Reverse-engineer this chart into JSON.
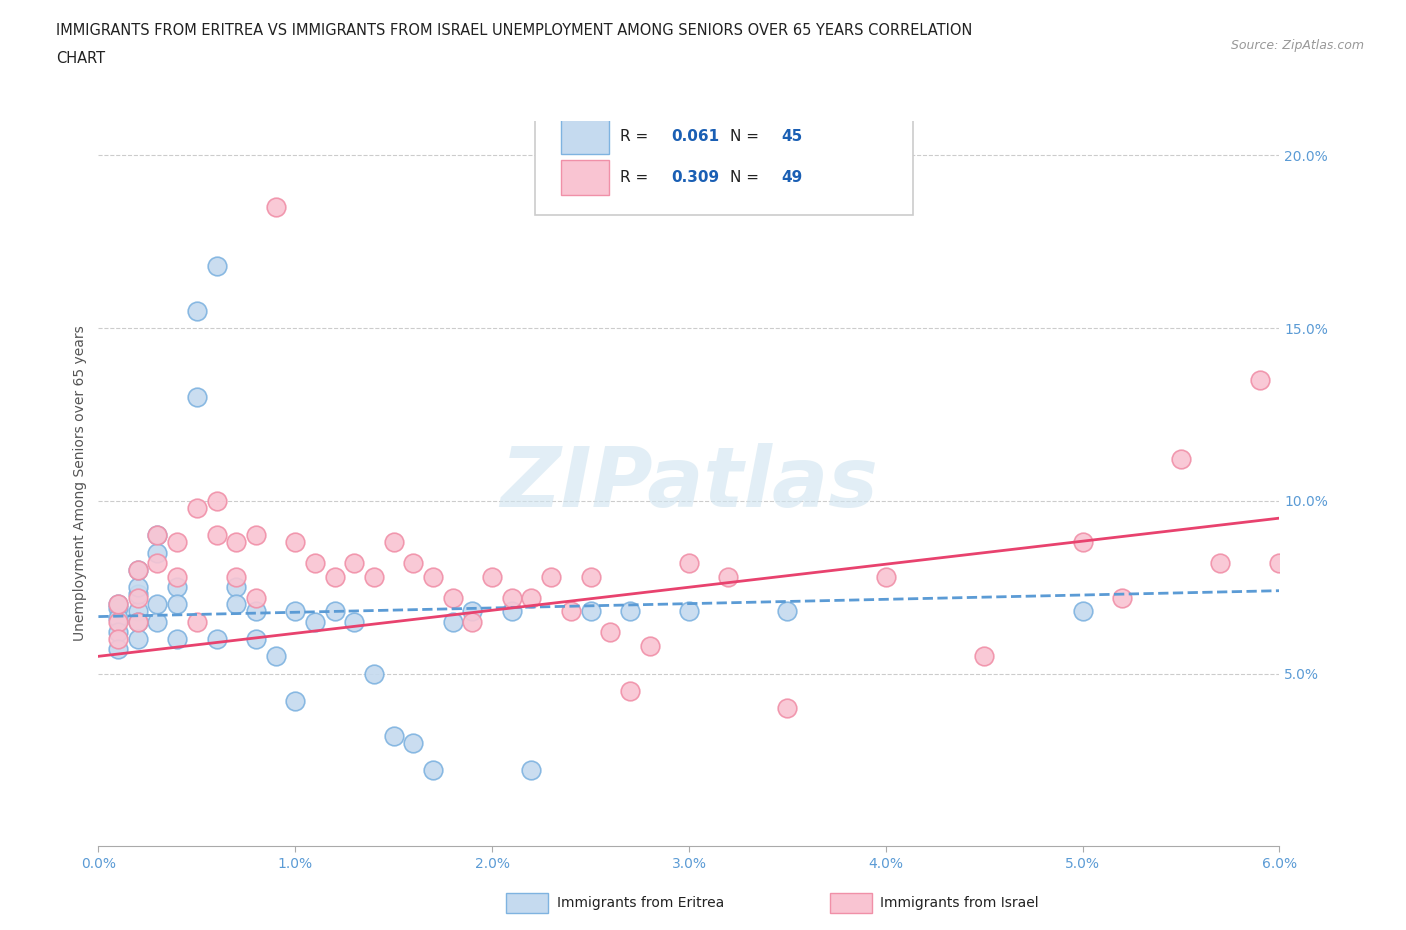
{
  "title_line1": "IMMIGRANTS FROM ERITREA VS IMMIGRANTS FROM ISRAEL UNEMPLOYMENT AMONG SENIORS OVER 65 YEARS CORRELATION",
  "title_line2": "CHART",
  "source": "Source: ZipAtlas.com",
  "ylabel": "Unemployment Among Seniors over 65 years",
  "xlim": [
    0.0,
    0.06
  ],
  "ylim": [
    0.0,
    0.21
  ],
  "xticks": [
    0.0,
    0.01,
    0.02,
    0.03,
    0.04,
    0.05,
    0.06
  ],
  "xticklabels": [
    "0.0%",
    "1.0%",
    "2.0%",
    "3.0%",
    "4.0%",
    "5.0%",
    "6.0%"
  ],
  "yticks": [
    0.05,
    0.1,
    0.15,
    0.2
  ],
  "yticklabels": [
    "5.0%",
    "10.0%",
    "15.0%",
    "20.0%"
  ],
  "color_eritrea_face": "#c5daef",
  "color_eritrea_edge": "#7fb3e0",
  "color_israel_face": "#f9c4d2",
  "color_israel_edge": "#f090a8",
  "color_eritrea_line": "#5b9bd5",
  "color_israel_line": "#e8426e",
  "legend_label_eritrea": "Immigrants from Eritrea",
  "legend_label_israel": "Immigrants from Israel",
  "watermark": "ZIPatlas",
  "eritrea_x": [
    0.001,
    0.001,
    0.001,
    0.001,
    0.001,
    0.002,
    0.002,
    0.002,
    0.002,
    0.002,
    0.002,
    0.003,
    0.003,
    0.003,
    0.003,
    0.004,
    0.004,
    0.004,
    0.005,
    0.005,
    0.006,
    0.006,
    0.007,
    0.007,
    0.008,
    0.008,
    0.009,
    0.01,
    0.01,
    0.011,
    0.012,
    0.013,
    0.014,
    0.015,
    0.016,
    0.017,
    0.018,
    0.019,
    0.021,
    0.022,
    0.025,
    0.027,
    0.03,
    0.035,
    0.05
  ],
  "eritrea_y": [
    0.069,
    0.066,
    0.062,
    0.057,
    0.07,
    0.068,
    0.073,
    0.065,
    0.06,
    0.075,
    0.08,
    0.09,
    0.085,
    0.065,
    0.07,
    0.075,
    0.07,
    0.06,
    0.13,
    0.155,
    0.168,
    0.06,
    0.075,
    0.07,
    0.068,
    0.06,
    0.055,
    0.068,
    0.042,
    0.065,
    0.068,
    0.065,
    0.05,
    0.032,
    0.03,
    0.022,
    0.065,
    0.068,
    0.068,
    0.022,
    0.068,
    0.068,
    0.068,
    0.068,
    0.068
  ],
  "israel_x": [
    0.001,
    0.001,
    0.001,
    0.002,
    0.002,
    0.002,
    0.003,
    0.003,
    0.004,
    0.004,
    0.005,
    0.005,
    0.006,
    0.006,
    0.007,
    0.007,
    0.008,
    0.008,
    0.009,
    0.01,
    0.011,
    0.012,
    0.013,
    0.014,
    0.015,
    0.016,
    0.017,
    0.018,
    0.019,
    0.02,
    0.021,
    0.022,
    0.023,
    0.024,
    0.025,
    0.026,
    0.027,
    0.028,
    0.03,
    0.032,
    0.035,
    0.04,
    0.045,
    0.05,
    0.052,
    0.055,
    0.057,
    0.059,
    0.06
  ],
  "israel_y": [
    0.065,
    0.06,
    0.07,
    0.072,
    0.08,
    0.065,
    0.09,
    0.082,
    0.078,
    0.088,
    0.098,
    0.065,
    0.09,
    0.1,
    0.078,
    0.088,
    0.072,
    0.09,
    0.185,
    0.088,
    0.082,
    0.078,
    0.082,
    0.078,
    0.088,
    0.082,
    0.078,
    0.072,
    0.065,
    0.078,
    0.072,
    0.072,
    0.078,
    0.068,
    0.078,
    0.062,
    0.045,
    0.058,
    0.082,
    0.078,
    0.04,
    0.078,
    0.055,
    0.088,
    0.072,
    0.112,
    0.082,
    0.135,
    0.082
  ]
}
